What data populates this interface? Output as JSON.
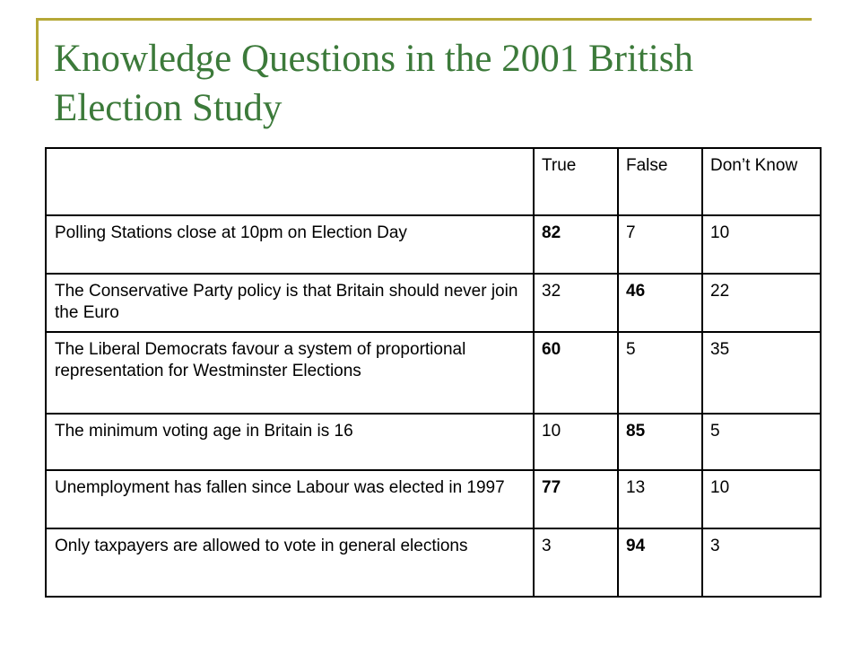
{
  "title": "Knowledge Questions in the 2001 British Election Study",
  "table": {
    "headers": [
      "",
      "True",
      "False",
      "Don’t Know"
    ],
    "rows": [
      {
        "question": "Polling Stations close at 10pm on Election Day",
        "true": "82",
        "false": "7",
        "dont_know": "10"
      },
      {
        "question": "The Conservative Party policy is that Britain should never join the Euro",
        "true": "32",
        "false": "46",
        "dont_know": "22"
      },
      {
        "question": "The Liberal Democrats favour a system of proportional representation for Westminster Elections",
        "true": "60",
        "false": "5",
        "dont_know": "35"
      },
      {
        "question": "The minimum voting age in Britain is 16",
        "true": "10",
        "false": "85",
        "dont_know": "5"
      },
      {
        "question": "Unemployment has fallen since Labour was elected in 1997",
        "true": "77",
        "false": "13",
        "dont_know": "10"
      },
      {
        "question": "Only taxpayers are allowed to vote in general elections",
        "true": "3",
        "false": "94",
        "dont_know": "3"
      }
    ]
  },
  "colors": {
    "title": "#3c7a3a",
    "frame": "#b5a837",
    "border": "#000000"
  }
}
